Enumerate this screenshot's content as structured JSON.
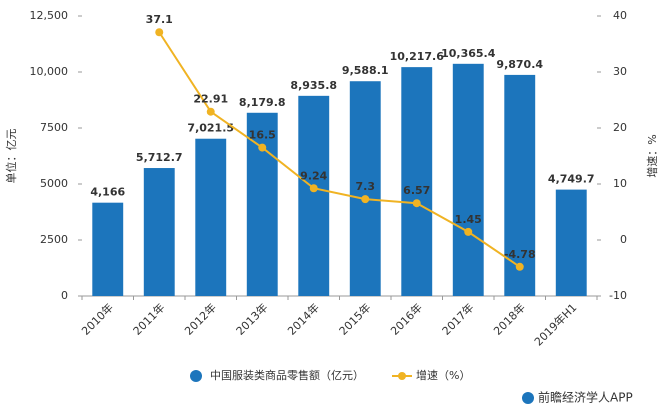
{
  "chart_data": {
    "type": "bar_line",
    "ylabel": "单位：亿元",
    "y2label": "增速：%",
    "source": "前瞻经济学人APP",
    "categories": [
      "2010年",
      "2011年",
      "2012年",
      "2013年",
      "2014年",
      "2015年",
      "2016年",
      "2017年",
      "2018年",
      "2019年H1"
    ],
    "series": [
      {
        "name": "中国服装类商品零售额（亿元）",
        "type": "bar",
        "color": "#1c75bc",
        "values": [
          4166,
          5712.7,
          7021.5,
          8179.8,
          8935.8,
          9588.1,
          10217.6,
          10365.4,
          9870.4,
          4749.7
        ],
        "value_labels": [
          "4,166",
          "5,712.7",
          "7,021.5",
          "8,179.8",
          "8,935.8",
          "9,588.1",
          "10,217.6",
          "10,365.4",
          "9,870.4",
          "4,749.7"
        ]
      },
      {
        "name": "增速（%）",
        "type": "line",
        "axis": "y2",
        "color": "#f0b323",
        "values": [
          null,
          37.1,
          22.91,
          16.5,
          9.24,
          7.3,
          6.57,
          1.45,
          -4.78,
          null
        ]
      }
    ],
    "ylim": [
      0,
      12500
    ],
    "yticks": [
      0,
      2500,
      5000,
      7500,
      {
        "value": 10000,
        "label": "10,000"
      },
      {
        "value": 12500,
        "label": "12,500"
      }
    ],
    "y2lim": [
      -10,
      40
    ],
    "y2ticks": [
      -10,
      0,
      10,
      20,
      30,
      40
    ]
  }
}
